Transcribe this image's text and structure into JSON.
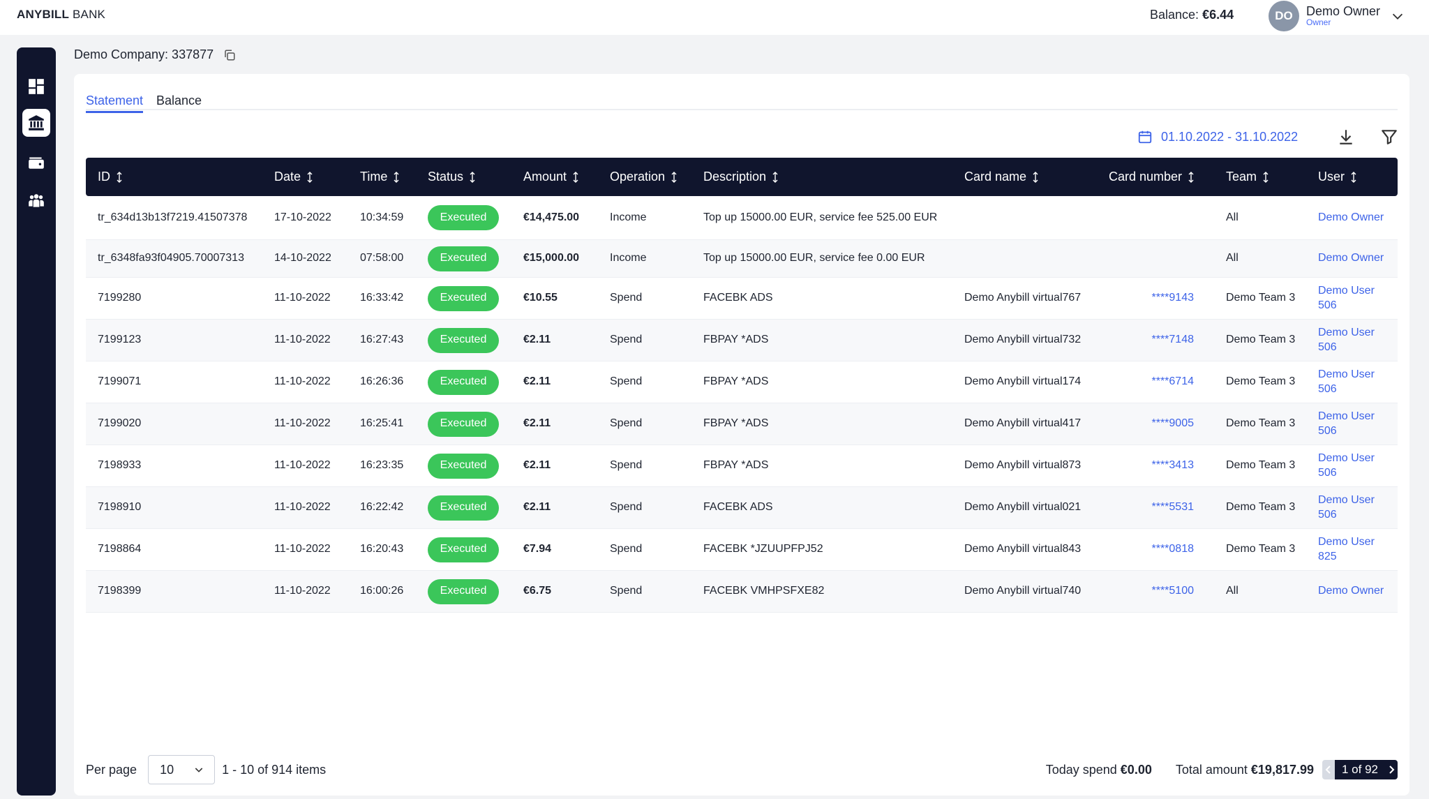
{
  "header": {
    "logo_bold": "ANYBILL",
    "logo_rest": " BANK",
    "balance_label": "Balance: ",
    "balance_value": "€6.44",
    "avatar_initials": "DO",
    "user_name": "Demo Owner",
    "user_role": "Owner"
  },
  "sidebar": {
    "items": [
      {
        "icon": "dashboard-icon"
      },
      {
        "icon": "bank-icon",
        "active": true
      },
      {
        "icon": "wallet-icon"
      },
      {
        "icon": "team-icon"
      }
    ]
  },
  "company": {
    "label": "Demo Company: 337877"
  },
  "tabs": [
    {
      "label": "Statement",
      "active": true
    },
    {
      "label": "Balance",
      "active": false
    }
  ],
  "toolbar": {
    "date_range": "01.10.2022 - 31.10.2022"
  },
  "table": {
    "columns": [
      "ID",
      "Date",
      "Time",
      "Status",
      "Amount",
      "Operation",
      "Description",
      "Card name",
      "Card number",
      "Team",
      "User"
    ],
    "rows": [
      {
        "id": "tr_634d13b13f7219.41507378",
        "date": "17-10-2022",
        "time": "10:34:59",
        "status": "Executed",
        "amount": "€14,475.00",
        "operation": "Income",
        "description": "Top up 15000.00 EUR, service fee 525.00 EUR",
        "card_name": "",
        "card_number": "",
        "team": "All",
        "user": "Demo Owner"
      },
      {
        "id": "tr_6348fa93f04905.70007313",
        "date": "14-10-2022",
        "time": "07:58:00",
        "status": "Executed",
        "amount": "€15,000.00",
        "operation": "Income",
        "description": "Top up 15000.00 EUR, service fee 0.00 EUR",
        "card_name": "",
        "card_number": "",
        "team": "All",
        "user": "Demo Owner"
      },
      {
        "id": "7199280",
        "date": "11-10-2022",
        "time": "16:33:42",
        "status": "Executed",
        "amount": "€10.55",
        "operation": "Spend",
        "description": "FACEBK ADS",
        "card_name": "Demo Anybill virtual767",
        "card_number": "****9143",
        "team": "Demo Team 3",
        "user": "Demo User 506"
      },
      {
        "id": "7199123",
        "date": "11-10-2022",
        "time": "16:27:43",
        "status": "Executed",
        "amount": "€2.11",
        "operation": "Spend",
        "description": "FBPAY *ADS",
        "card_name": "Demo Anybill virtual732",
        "card_number": "****7148",
        "team": "Demo Team 3",
        "user": "Demo User 506"
      },
      {
        "id": "7199071",
        "date": "11-10-2022",
        "time": "16:26:36",
        "status": "Executed",
        "amount": "€2.11",
        "operation": "Spend",
        "description": "FBPAY *ADS",
        "card_name": "Demo Anybill virtual174",
        "card_number": "****6714",
        "team": "Demo Team 3",
        "user": "Demo User 506"
      },
      {
        "id": "7199020",
        "date": "11-10-2022",
        "time": "16:25:41",
        "status": "Executed",
        "amount": "€2.11",
        "operation": "Spend",
        "description": "FBPAY *ADS",
        "card_name": "Demo Anybill virtual417",
        "card_number": "****9005",
        "team": "Demo Team 3",
        "user": "Demo User 506"
      },
      {
        "id": "7198933",
        "date": "11-10-2022",
        "time": "16:23:35",
        "status": "Executed",
        "amount": "€2.11",
        "operation": "Spend",
        "description": "FBPAY *ADS",
        "card_name": "Demo Anybill virtual873",
        "card_number": "****3413",
        "team": "Demo Team 3",
        "user": "Demo User 506"
      },
      {
        "id": "7198910",
        "date": "11-10-2022",
        "time": "16:22:42",
        "status": "Executed",
        "amount": "€2.11",
        "operation": "Spend",
        "description": "FACEBK ADS",
        "card_name": "Demo Anybill virtual021",
        "card_number": "****5531",
        "team": "Demo Team 3",
        "user": "Demo User 506"
      },
      {
        "id": "7198864",
        "date": "11-10-2022",
        "time": "16:20:43",
        "status": "Executed",
        "amount": "€7.94",
        "operation": "Spend",
        "description": "FACEBK *JZUUPFPJ52",
        "card_name": "Demo Anybill virtual843",
        "card_number": "****0818",
        "team": "Demo Team 3",
        "user": "Demo User 825"
      },
      {
        "id": "7198399",
        "date": "11-10-2022",
        "time": "16:00:26",
        "status": "Executed",
        "amount": "€6.75",
        "operation": "Spend",
        "description": "FACEBK VMHPSFXE82",
        "card_name": "Demo Anybill virtual740",
        "card_number": "****5100",
        "team": "All",
        "user": "Demo Owner"
      }
    ]
  },
  "footer": {
    "per_page_label": "Per page",
    "per_page_value": "10",
    "items_info": "1 - 10 of 914 items",
    "today_spend_label": "Today spend ",
    "today_spend_value": "€0.00",
    "total_label": "Total amount ",
    "total_value": "€19,817.99",
    "page_info": "1 of 92"
  },
  "colors": {
    "sidebar_bg": "#10152d",
    "accent": "#3d63e8",
    "status_executed": "#3bc65a"
  }
}
